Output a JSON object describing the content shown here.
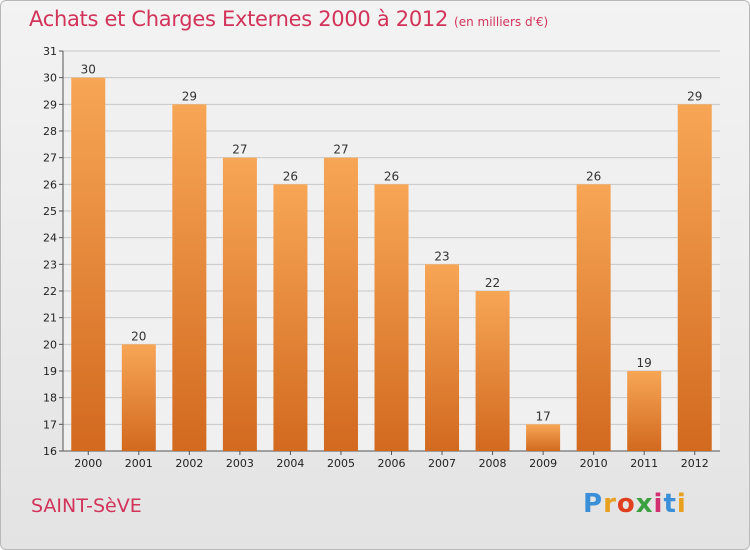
{
  "header": {
    "title": "Achats et Charges Externes 2000 à 2012",
    "subtitle": "(en milliers d'€)"
  },
  "footer": {
    "place": "SAINT-SèVE",
    "logo_letters": [
      "P",
      "r",
      "o",
      "x",
      "i",
      "t",
      "i"
    ],
    "logo_colors": [
      "#3a8fd8",
      "#e8a020",
      "#e04020",
      "#3aa040",
      "#d03070",
      "#3a8fd8",
      "#e8a020"
    ]
  },
  "colors": {
    "bar_light": "#f7a656",
    "bar_dark": "#d2691f",
    "title": "#d2335a",
    "grid": "#c8c8c8"
  },
  "chart_data": {
    "type": "bar",
    "title": "Achats et Charges Externes 2000 à 2012",
    "categories": [
      "2000",
      "2001",
      "2002",
      "2003",
      "2004",
      "2005",
      "2006",
      "2007",
      "2008",
      "2009",
      "2010",
      "2011",
      "2012"
    ],
    "values": [
      30,
      20,
      29,
      27,
      26,
      27,
      26,
      23,
      22,
      17,
      26,
      19,
      29
    ],
    "ylim": [
      16,
      31
    ],
    "yticks": [
      16,
      17,
      18,
      19,
      20,
      21,
      22,
      23,
      24,
      25,
      26,
      27,
      28,
      29,
      30,
      31
    ],
    "grid": true,
    "xlabel": "",
    "ylabel": ""
  }
}
